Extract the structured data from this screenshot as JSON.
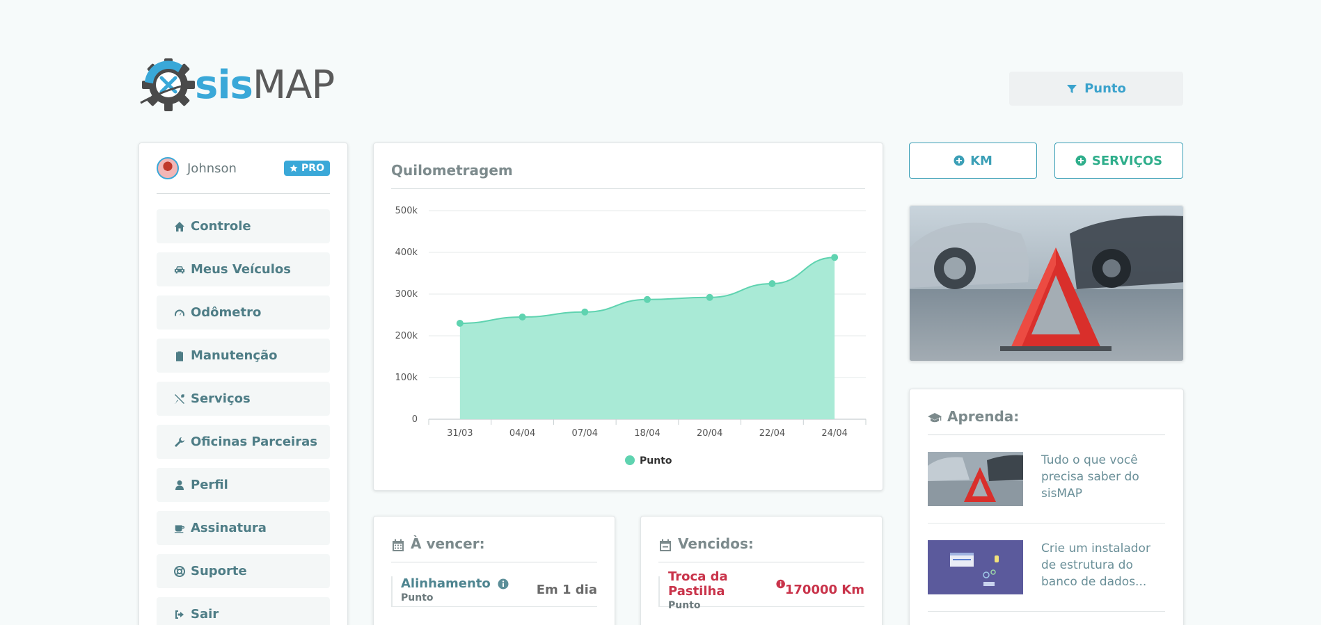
{
  "header": {
    "brand_sis": "sis",
    "brand_map": "MAP",
    "filter_label": "Punto"
  },
  "sidebar": {
    "user_name": "Johnson",
    "badge": "PRO",
    "items": [
      {
        "label": "Controle",
        "icon": "home-icon"
      },
      {
        "label": "Meus Veículos",
        "icon": "car-icon"
      },
      {
        "label": "Odômetro",
        "icon": "gauge-icon"
      },
      {
        "label": "Manutenção",
        "icon": "clipboard-icon"
      },
      {
        "label": "Serviços",
        "icon": "tools-icon"
      },
      {
        "label": "Oficinas Parceiras",
        "icon": "wrench-icon"
      },
      {
        "label": "Perfil",
        "icon": "user-icon"
      },
      {
        "label": "Assinatura",
        "icon": "mug-icon"
      },
      {
        "label": "Suporte",
        "icon": "lifebuoy-icon"
      },
      {
        "label": "Sair",
        "icon": "sign-out-icon"
      }
    ]
  },
  "chart_card": {
    "title": "Quilometragem"
  },
  "chart_data": {
    "type": "area",
    "categories": [
      "31/03",
      "04/04",
      "07/04",
      "18/04",
      "20/04",
      "22/04",
      "24/04"
    ],
    "series": [
      {
        "name": "Punto",
        "values": [
          230000,
          245000,
          257000,
          287000,
          292000,
          325000,
          388000
        ],
        "color": "#5fd3b0",
        "fill": "#a9ead6"
      }
    ],
    "y_ticks": [
      "0",
      "100k",
      "200k",
      "300k",
      "400k",
      "500k"
    ],
    "ylim": [
      0,
      500000
    ],
    "grid": true,
    "legend": "bottom"
  },
  "actions": {
    "km_label": "KM",
    "services_label": "SERVIÇOS"
  },
  "learn": {
    "title": "Aprenda:",
    "items": [
      {
        "text": "Tudo o que você precisa saber do sisMAP"
      },
      {
        "text": "Crie um instalador de estrutura do banco de dados..."
      }
    ]
  },
  "due_soon": {
    "title": "À vencer:",
    "item_name": "Alinhamento",
    "item_vehicle": "Punto",
    "item_value": "Em 1 dia"
  },
  "overdue": {
    "title": "Vencidos:",
    "item_name": "Troca da Pastilha",
    "item_vehicle": "Punto",
    "item_value": "170000 Km"
  },
  "colors": {
    "accent_blue": "#3aa8d8",
    "accent_green": "#2fae8b",
    "danger": "#c9334a"
  }
}
